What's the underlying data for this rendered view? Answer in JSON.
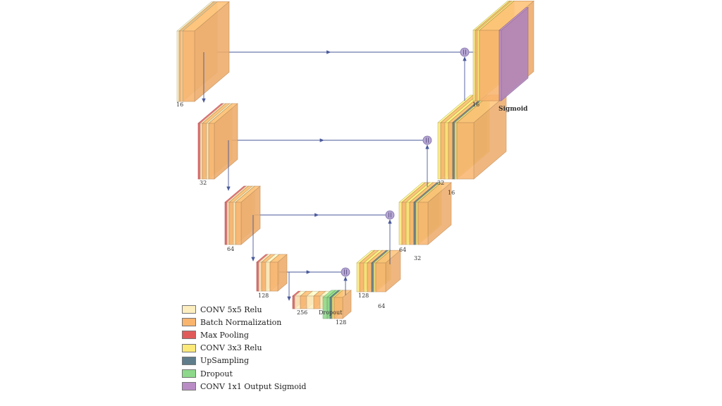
{
  "colors": {
    "conv5x5": "#fdeec0",
    "batchnorm": "#f9b46e",
    "maxpool": "#e05a5a",
    "conv3x3": "#fbe97a",
    "upsampling": "#5f7d8a",
    "dropout": "#8dd88a",
    "conv1x1": "#b98cc6",
    "arrow": "#4a5a9a"
  },
  "labels": {
    "enc1": "16",
    "enc2": "32",
    "enc3": "64",
    "enc4": "128",
    "bottleneck": "256",
    "dropout": "Dropout",
    "bottleneck_up": "128",
    "dec4a": "128",
    "dec4b": "64",
    "dec3a": "64",
    "dec3b": "32",
    "dec2a": "32",
    "dec2b": "16",
    "dec1": "16",
    "output": "Sigmoid"
  },
  "legend": {
    "items": [
      {
        "label": "CONV 5x5 Relu",
        "color": "#fdeec0"
      },
      {
        "label": "Batch Normalization",
        "color": "#f9b46e"
      },
      {
        "label": "Max Pooling",
        "color": "#e05a5a"
      },
      {
        "label": "CONV 3x3 Relu",
        "color": "#fbe97a"
      },
      {
        "label": "UpSampling",
        "color": "#5f7d8a"
      },
      {
        "label": "Dropout",
        "color": "#8dd88a"
      },
      {
        "label": "CONV 1x1 Output Sigmoid",
        "color": "#b98cc6"
      }
    ]
  }
}
